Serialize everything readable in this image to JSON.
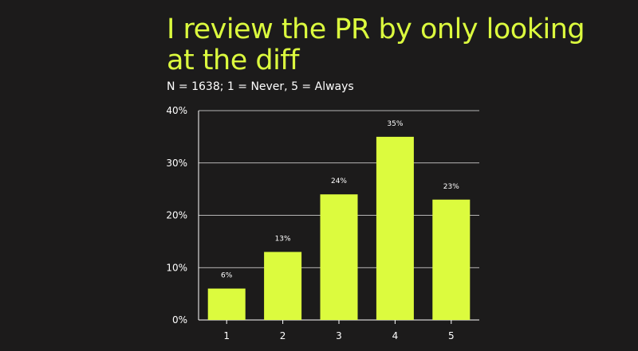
{
  "header": {
    "title": "I review the PR by only looking at the diff",
    "subtitle": "N = 1638; 1 = Never, 5 = Always"
  },
  "colors": {
    "background": "#1c1b1b",
    "accent": "#dcfb3e",
    "text": "#ffffff",
    "grid": "#ffffff"
  },
  "chart_data": {
    "type": "bar",
    "title": "I review the PR by only looking at the diff",
    "subtitle": "N = 1638; 1 = Never, 5 = Always",
    "categories": [
      "1",
      "2",
      "3",
      "4",
      "5"
    ],
    "values": [
      6,
      13,
      24,
      35,
      23
    ],
    "data_labels": [
      "6%",
      "13%",
      "24%",
      "35%",
      "23%"
    ],
    "y_ticks": [
      0,
      10,
      20,
      30,
      40
    ],
    "y_tick_labels": [
      "0%",
      "10%",
      "20%",
      "30%",
      "40%"
    ],
    "ylim": [
      0,
      40
    ],
    "xlabel": "",
    "ylabel": "",
    "grid": true,
    "legend": "none"
  }
}
